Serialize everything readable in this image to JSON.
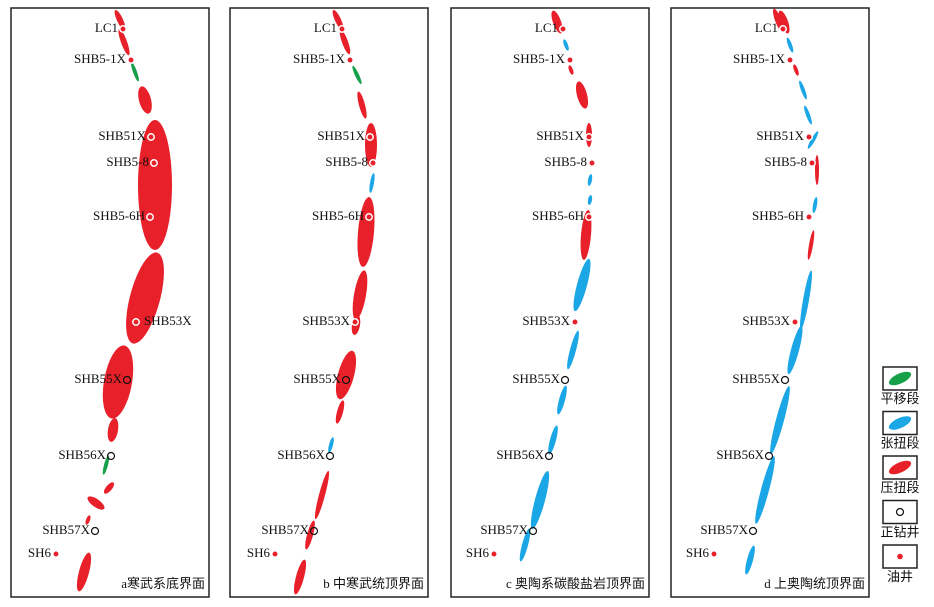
{
  "wells": [
    "LC1",
    "SHB5-1X",
    "SHB51X",
    "SHB5-8",
    "SHB5-6H",
    "SHB53X",
    "SHB55X",
    "SHB56X",
    "SHB57X",
    "SH6"
  ],
  "panels": [
    {
      "caption": "a寒武系底界面"
    },
    {
      "caption": "b 中寒武统顶界面"
    },
    {
      "caption": "c 奥陶系碳酸盐岩顶界面"
    },
    {
      "caption": "d 上奥陶统顶界面"
    }
  ],
  "legend": [
    "平移段",
    "张扭段",
    "压扭段",
    "正钻井",
    "油井"
  ]
}
